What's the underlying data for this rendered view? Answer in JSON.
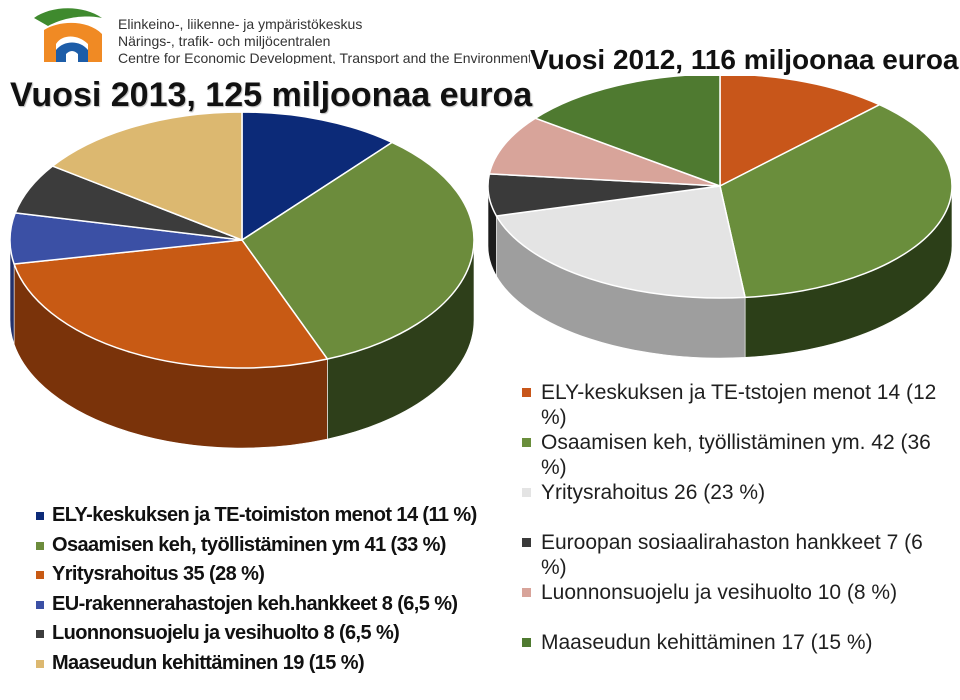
{
  "header": {
    "org_name_fi": "Elinkeino-, liikenne- ja ympäristökeskus",
    "org_name_sv": "Närings-, trafik- och miljöcentralen",
    "org_name_en": "Centre for Economic Development, Transport and the Environment"
  },
  "chart_data": [
    {
      "type": "pie",
      "title": "Vuosi 2013, 125 miljoonaa euroa",
      "legend_position": "bottom",
      "slices": [
        {
          "label": "ELY-keskuksen ja TE-toimiston menot 14 (11 %)",
          "value": 14,
          "percent": 11,
          "color": "#0c2a78",
          "side": "#061a4f"
        },
        {
          "label": "Osaamisen keh, työllistäminen ym 41 (33 %)",
          "value": 41,
          "percent": 33,
          "color": "#6c8c3c",
          "side": "#2e3f1a"
        },
        {
          "label": "Yritysrahoitus 35 (28 %)",
          "value": 35,
          "percent": 28,
          "color": "#c85a14",
          "side": "#7a330a"
        },
        {
          "label": "EU-rakennerahastojen keh.hankkeet 8 (6,5 %)",
          "value": 8,
          "percent": 6.5,
          "color": "#3b50a5",
          "side": "#22306a"
        },
        {
          "label": "Luonnonsuojelu ja vesihuolto 8 (6,5 %)",
          "value": 8,
          "percent": 6.5,
          "color": "#3c3c3c",
          "side": "#1e1e1e"
        },
        {
          "label": "Maaseudun kehittäminen 19 (15 %)",
          "value": 19,
          "percent": 15,
          "color": "#dcb870",
          "side": "#9a7c45"
        }
      ]
    },
    {
      "type": "pie",
      "title": "Vuosi 2012, 116 miljoonaa euroa",
      "legend_position": "right",
      "slices": [
        {
          "label": "ELY-keskuksen ja TE-tstojen menot 14 (12 %)",
          "value": 14,
          "percent": 12,
          "color": "#c8561a",
          "side": "#7a3510"
        },
        {
          "label": "Osaamisen keh, työllistäminen ym. 42 (36 %)",
          "value": 42,
          "percent": 36,
          "color": "#6a8e3c",
          "side": "#2c3f18"
        },
        {
          "label": "Yritysrahoitus 26 (23 %)",
          "value": 26,
          "percent": 23,
          "color": "#e4e4e4",
          "side": "#9e9e9e"
        },
        {
          "label": "Euroopan sosiaalirahaston hankkeet 7 (6 %)",
          "value": 7,
          "percent": 6,
          "color": "#3a3a3a",
          "side": "#1c1c1c"
        },
        {
          "label": "Luonnonsuojelu ja vesihuolto 10 (8 %)",
          "value": 10,
          "percent": 8,
          "color": "#d8a49a",
          "side": "#8e6660"
        },
        {
          "label": "Maaseudun kehittäminen 17 (15 %)",
          "value": 17,
          "percent": 15,
          "color": "#4f7a30",
          "side": "#2a4418"
        }
      ]
    }
  ]
}
